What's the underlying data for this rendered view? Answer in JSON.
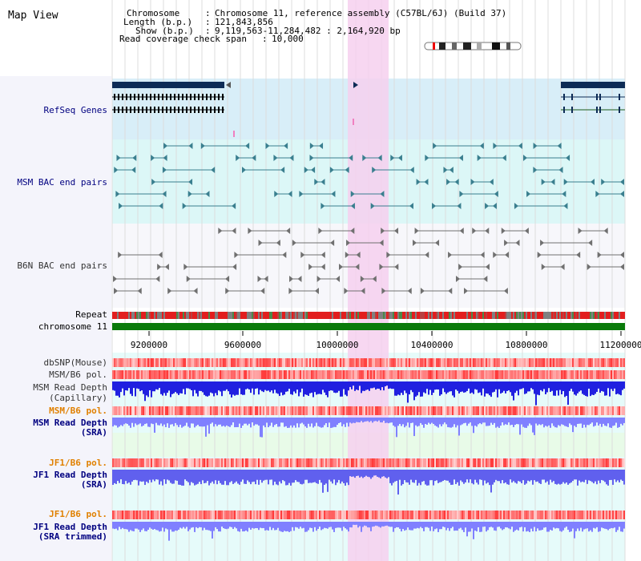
{
  "title": "Map View",
  "info": {
    "chromosome_label": "Chromosome",
    "chromosome_value": "Chromosome 11, reference assembly (C57BL/6J) (Build 37)",
    "length_label": "Length (b.p.)",
    "length_value": "121,843,856",
    "show_label": "Show (b.p.)",
    "show_value": "9,119,563-11,284,482 : 2,164,920 bp",
    "span_label": "Read coverage check span",
    "span_value": "10,000"
  },
  "tracks": {
    "refseq": "RefSeq Genes",
    "msm_bac": "MSM BAC end pairs",
    "b6n_bac": "B6N BAC end pairs",
    "repeat": "Repeat",
    "chromosome": "chromosome 11",
    "dbsnp": "dbSNP(Mouse)",
    "msm_b6_pol": "MSM/B6 pol.",
    "msm_depth_cap": [
      "MSM Read Depth",
      "(Capillary)"
    ],
    "msm_b6_pol2": "MSM/B6 pol.",
    "msm_depth_sra": [
      "MSM Read Depth",
      "(SRA)"
    ],
    "jf1_b6_pol": "JF1/B6 pol.",
    "jf1_depth_sra": [
      "JF1 Read Depth",
      "(SRA)"
    ],
    "jf1_b6_pol2": "JF1/B6 pol.",
    "jf1_depth_trim": [
      "JF1 Read Depth",
      "(SRA trimmed)"
    ]
  },
  "axis": {
    "ticks": [
      "9200000",
      "9600000",
      "10000000",
      "10400000",
      "10800000",
      "11200000"
    ]
  },
  "colors": {
    "title": "#000000",
    "track_label_blue": "#000080",
    "track_label_orange": "#e08000",
    "highlight": "#f6d0ee",
    "refseq_bg": "#d8eef8",
    "msm_bac_bg": "#dcf7f7",
    "b6n_bac_bg": "#f7f7fb",
    "coverage_bg": "#e8fbe8",
    "teal": "#3a7f8f",
    "depth_blue": "#2020e0",
    "depth_light": "#8080ff"
  }
}
